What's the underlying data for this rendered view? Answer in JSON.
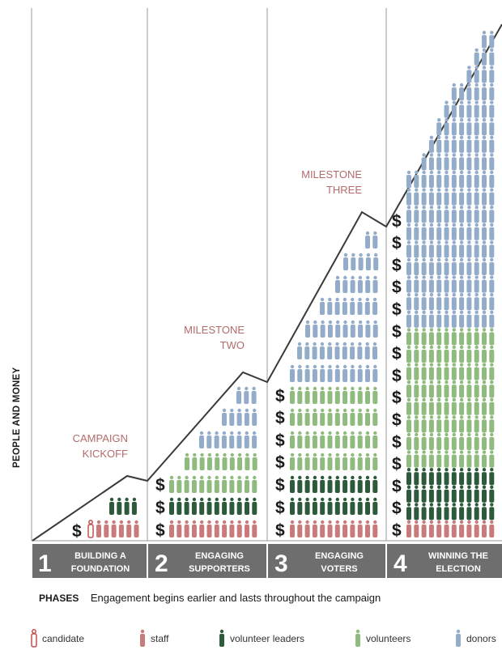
{
  "colors": {
    "candidate": "#c0504d",
    "staff": "#c97b7b",
    "volunteer_leaders": "#2e5a3c",
    "volunteers": "#8fbb7e",
    "donors": "#92acc9",
    "phase_bar": "#6e6e6e",
    "milestone_text": "#b36b6b",
    "line": "#3a3a3a"
  },
  "y_axis_label": "PEOPLE AND MONEY",
  "milestones": [
    {
      "lines": [
        "CAMPAIGN",
        "KICKOFF"
      ]
    },
    {
      "lines": [
        "MILESTONE",
        "TWO"
      ]
    },
    {
      "lines": [
        "MILESTONE",
        "THREE"
      ]
    }
  ],
  "phases": [
    {
      "number": "1",
      "lines": [
        "BUILDING A",
        "FOUNDATION"
      ]
    },
    {
      "number": "2",
      "lines": [
        "ENGAGING",
        "SUPPORTERS"
      ]
    },
    {
      "number": "3",
      "lines": [
        "ENGAGING",
        "VOTERS"
      ]
    },
    {
      "number": "4",
      "lines": [
        "WINNING THE",
        "ELECTION"
      ]
    }
  ],
  "phases_caption": {
    "title": "PHASES",
    "text": "Engagement begins earlier and lasts throughout the campaign"
  },
  "dollar_symbol": "$",
  "legend": [
    {
      "key": "candidate",
      "label": "candidate",
      "icon": "candidate-icon"
    },
    {
      "key": "staff",
      "label": "staff",
      "icon": "staff-icon"
    },
    {
      "key": "volunteer_leaders",
      "label": "volunteer leaders",
      "icon": "volunteer-leader-icon"
    },
    {
      "key": "volunteers",
      "label": "volunteers",
      "icon": "volunteer-icon"
    },
    {
      "key": "donors",
      "label": "donors",
      "icon": "donor-icon"
    }
  ]
}
